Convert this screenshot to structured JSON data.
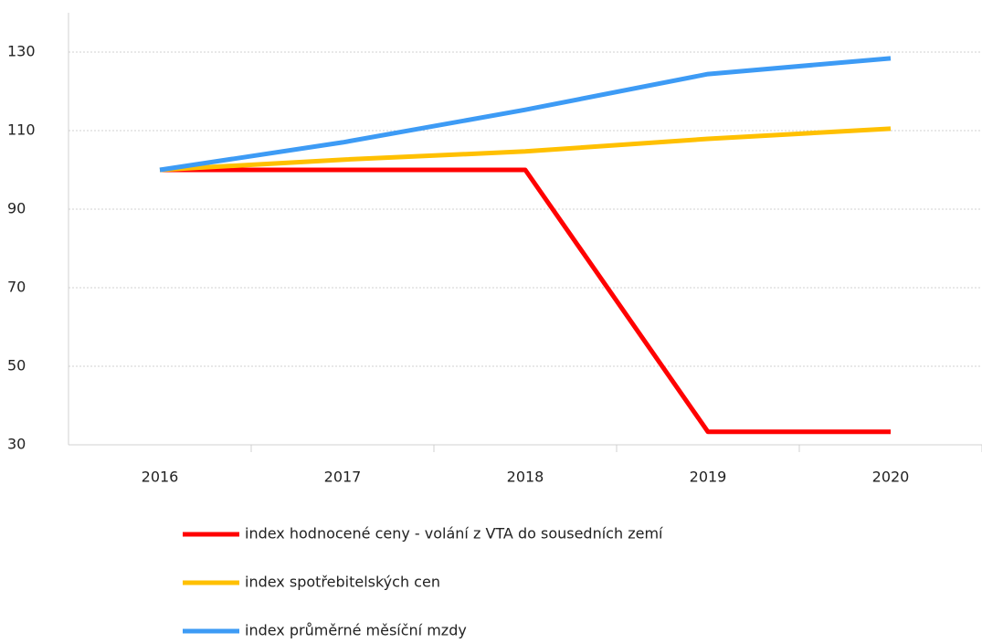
{
  "chart_data": {
    "type": "line",
    "categories": [
      "2016",
      "2017",
      "2018",
      "2019",
      "2020"
    ],
    "series": [
      {
        "name": "index hodnocené ceny - volání z VTA do sousedních zemí",
        "color": "#ff0000",
        "values": [
          100,
          100,
          100,
          33.3,
          33.3
        ]
      },
      {
        "name": "index spotřebitelských cen",
        "color": "#ffc000",
        "values": [
          100,
          102.6,
          104.7,
          107.9,
          110.5
        ]
      },
      {
        "name": "index průměrné měsíční mzdy",
        "color": "#3d9bf5",
        "values": [
          100,
          107,
          115.3,
          124.4,
          128.4
        ]
      }
    ],
    "ylim": [
      30,
      140
    ],
    "yticks": [
      30,
      50,
      70,
      90,
      110,
      130
    ],
    "grid": true,
    "legend": "bottom"
  }
}
